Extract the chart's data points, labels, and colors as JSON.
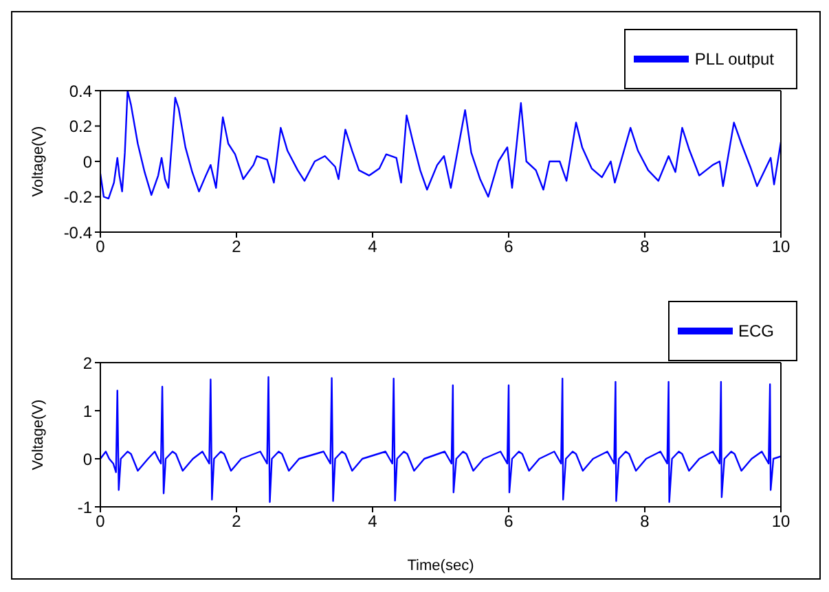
{
  "chart_data": [
    {
      "type": "line",
      "ylabel": "Voltage(V)",
      "xlim": [
        0,
        10
      ],
      "xticks": [
        0,
        2,
        4,
        6,
        8,
        10
      ],
      "ylim": [
        -0.4,
        0.4
      ],
      "yticks": [
        -0.4,
        -0.2,
        0,
        0.2,
        0.4
      ],
      "legend": "top right",
      "grid": false,
      "x": [
        0,
        0.05,
        0.12,
        0.2,
        0.25,
        0.28,
        0.32,
        0.36,
        0.4,
        0.45,
        0.55,
        0.65,
        0.75,
        0.85,
        0.9,
        0.95,
        1.0,
        1.05,
        1.1,
        1.15,
        1.25,
        1.35,
        1.45,
        1.55,
        1.62,
        1.7,
        1.75,
        1.8,
        1.88,
        1.98,
        2.1,
        2.25,
        2.3,
        2.45,
        2.55,
        2.65,
        2.75,
        2.9,
        3.0,
        3.15,
        3.3,
        3.45,
        3.5,
        3.6,
        3.7,
        3.8,
        3.95,
        4.1,
        4.2,
        4.35,
        4.42,
        4.5,
        4.6,
        4.7,
        4.8,
        4.95,
        5.05,
        5.15,
        5.36,
        5.45,
        5.58,
        5.7,
        5.85,
        5.98,
        6.05,
        6.18,
        6.26,
        6.4,
        6.51,
        6.6,
        6.75,
        6.85,
        6.99,
        7.08,
        7.22,
        7.37,
        7.5,
        7.56,
        7.79,
        7.9,
        8.05,
        8.2,
        8.35,
        8.45,
        8.55,
        8.65,
        8.8,
        9.0,
        9.1,
        9.15,
        9.31,
        9.42,
        9.55,
        9.65,
        9.85,
        9.9,
        10.0
      ],
      "series": [
        {
          "name": "PLL output",
          "color": "#0000ff",
          "values": [
            -0.07,
            -0.2,
            -0.21,
            -0.12,
            0.02,
            -0.08,
            -0.17,
            0.05,
            0.4,
            0.32,
            0.1,
            -0.06,
            -0.19,
            -0.08,
            0.02,
            -0.1,
            -0.15,
            0.1,
            0.36,
            0.3,
            0.08,
            -0.06,
            -0.17,
            -0.08,
            -0.02,
            -0.15,
            0.05,
            0.25,
            0.1,
            0.04,
            -0.1,
            -0.02,
            0.03,
            0.01,
            -0.12,
            0.19,
            0.06,
            -0.05,
            -0.11,
            0.0,
            0.03,
            -0.03,
            -0.1,
            0.18,
            0.06,
            -0.05,
            -0.08,
            -0.04,
            0.04,
            0.02,
            -0.12,
            0.26,
            0.1,
            -0.05,
            -0.16,
            -0.02,
            0.03,
            -0.15,
            0.29,
            0.05,
            -0.1,
            -0.2,
            0.0,
            0.08,
            -0.15,
            0.33,
            0.0,
            -0.05,
            -0.16,
            0.0,
            0.0,
            -0.11,
            0.22,
            0.08,
            -0.04,
            -0.09,
            0.0,
            -0.12,
            0.19,
            0.06,
            -0.05,
            -0.11,
            0.03,
            -0.06,
            0.19,
            0.07,
            -0.08,
            -0.02,
            0.0,
            -0.14,
            0.22,
            0.1,
            -0.03,
            -0.14,
            0.02,
            -0.13,
            0.11
          ]
        }
      ]
    },
    {
      "type": "line",
      "xlabel": "Time(sec)",
      "ylabel": "Voltage(V)",
      "xlim": [
        0,
        10
      ],
      "xticks": [
        0,
        2,
        4,
        6,
        8,
        10
      ],
      "ylim": [
        -1,
        2
      ],
      "yticks": [
        -1,
        0,
        1,
        2
      ],
      "legend": "top right",
      "grid": false,
      "x": [
        0,
        0.08,
        0.13,
        0.19,
        0.23,
        0.25,
        0.27,
        0.3,
        0.4,
        0.45,
        0.55,
        0.7,
        0.8,
        0.85,
        0.89,
        0.91,
        0.93,
        0.96,
        1.06,
        1.11,
        1.21,
        1.36,
        1.5,
        1.56,
        1.6,
        1.62,
        1.64,
        1.67,
        1.77,
        1.82,
        1.92,
        2.07,
        2.35,
        2.41,
        2.45,
        2.47,
        2.49,
        2.52,
        2.62,
        2.67,
        2.77,
        2.92,
        3.28,
        3.34,
        3.38,
        3.4,
        3.42,
        3.45,
        3.55,
        3.6,
        3.7,
        3.85,
        4.19,
        4.25,
        4.29,
        4.31,
        4.33,
        4.36,
        4.46,
        4.51,
        4.61,
        4.76,
        5.06,
        5.12,
        5.16,
        5.18,
        5.19,
        5.23,
        5.33,
        5.38,
        5.48,
        5.63,
        5.88,
        5.94,
        5.98,
        6.0,
        6.01,
        6.05,
        6.15,
        6.2,
        6.3,
        6.45,
        6.67,
        6.73,
        6.77,
        6.79,
        6.8,
        6.84,
        6.94,
        6.99,
        7.09,
        7.24,
        7.45,
        7.51,
        7.55,
        7.57,
        7.58,
        7.62,
        7.72,
        7.77,
        7.87,
        8.02,
        8.23,
        8.29,
        8.33,
        8.35,
        8.36,
        8.4,
        8.5,
        8.55,
        8.65,
        8.8,
        9.0,
        9.06,
        9.1,
        9.12,
        9.13,
        9.17,
        9.27,
        9.32,
        9.42,
        9.57,
        9.72,
        9.78,
        9.82,
        9.84,
        9.85,
        9.89,
        10.0
      ],
      "series": [
        {
          "name": "ECG",
          "color": "#0000ff",
          "values": [
            0,
            0.15,
            0,
            -0.1,
            -0.28,
            1.42,
            -0.65,
            0,
            0.15,
            0.1,
            -0.25,
            0,
            0.15,
            0,
            -0.1,
            1.5,
            -0.72,
            0,
            0.15,
            0.1,
            -0.25,
            0,
            0.15,
            0,
            -0.1,
            1.65,
            -0.85,
            0,
            0.15,
            0.1,
            -0.25,
            0,
            0.15,
            0,
            -0.1,
            1.7,
            -0.9,
            0,
            0.15,
            0.1,
            -0.25,
            0,
            0.15,
            0,
            -0.1,
            1.68,
            -0.88,
            0,
            0.15,
            0.1,
            -0.25,
            0,
            0.15,
            0,
            -0.1,
            1.67,
            -0.87,
            0,
            0.15,
            0.1,
            -0.25,
            0,
            0.15,
            0,
            -0.1,
            1.53,
            -0.7,
            0,
            0.15,
            0.1,
            -0.25,
            0,
            0.15,
            0,
            -0.1,
            1.53,
            -0.7,
            0,
            0.15,
            0.1,
            -0.25,
            0,
            0.15,
            0,
            -0.1,
            1.67,
            -0.85,
            0,
            0.15,
            0.1,
            -0.25,
            0,
            0.15,
            0,
            -0.1,
            1.6,
            -0.88,
            0,
            0.15,
            0.1,
            -0.25,
            0,
            0.15,
            0,
            -0.1,
            1.6,
            -0.9,
            0,
            0.15,
            0.1,
            -0.25,
            0,
            0.15,
            0,
            -0.1,
            1.6,
            -0.8,
            0,
            0.15,
            0.1,
            -0.25,
            0,
            0.15,
            0,
            -0.1,
            1.55,
            -0.65,
            0,
            0.05
          ]
        }
      ]
    }
  ]
}
